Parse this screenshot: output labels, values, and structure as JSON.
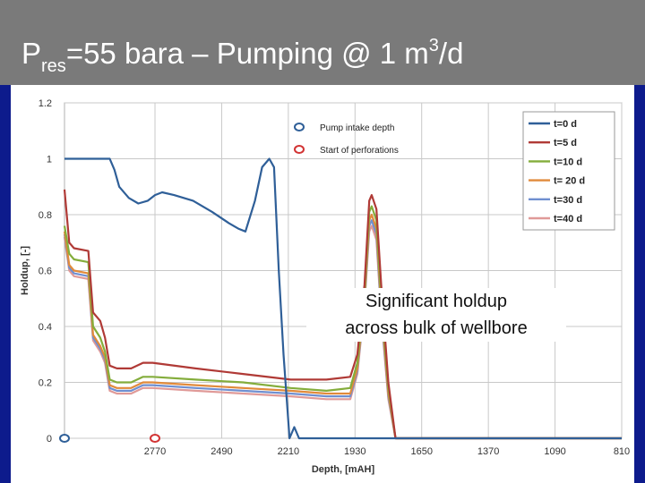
{
  "slide": {
    "title_main": "P",
    "title_sub": "res",
    "title_mid": "=55 bara – Pumping @ 1 m",
    "title_sup": "3",
    "title_end": "/d"
  },
  "annotation": {
    "line1": "Significant holdup",
    "line2": "across bulk of wellbore"
  },
  "colors": {
    "header_bg": "#7a7a7a",
    "side_bars": "#0d1b8c",
    "grid": "#c8c8c8"
  },
  "chart_data": {
    "type": "line",
    "title": "",
    "xlabel": "Depth, [mAH]",
    "ylabel": "Holdup, [-]",
    "x_reversed": true,
    "xlim": [
      3150,
      810
    ],
    "ylim": [
      0,
      1.2
    ],
    "x_ticks": [
      2770,
      2490,
      2210,
      1930,
      1650,
      1370,
      1090,
      810
    ],
    "y_ticks": [
      0,
      0.2,
      0.4,
      0.6,
      0.8,
      1,
      1.2
    ],
    "y_tick_labels": [
      "0",
      "0.2",
      "0.4",
      "0.6",
      "0.8",
      "1",
      "1.2"
    ],
    "grid": true,
    "legend_position": "top-right",
    "series": [
      {
        "name": "t=0 d",
        "color": "#2f5f98",
        "points": [
          [
            3150,
            1.0
          ],
          [
            2960,
            1.0
          ],
          [
            2940,
            0.96
          ],
          [
            2920,
            0.9
          ],
          [
            2880,
            0.86
          ],
          [
            2840,
            0.84
          ],
          [
            2800,
            0.85
          ],
          [
            2770,
            0.87
          ],
          [
            2740,
            0.88
          ],
          [
            2690,
            0.87
          ],
          [
            2610,
            0.85
          ],
          [
            2530,
            0.81
          ],
          [
            2460,
            0.77
          ],
          [
            2420,
            0.75
          ],
          [
            2390,
            0.74
          ],
          [
            2350,
            0.85
          ],
          [
            2320,
            0.97
          ],
          [
            2290,
            1.0
          ],
          [
            2270,
            0.97
          ],
          [
            2250,
            0.6
          ],
          [
            2230,
            0.3
          ],
          [
            2205,
            0.0
          ],
          [
            2185,
            0.04
          ],
          [
            2165,
            0.0
          ],
          [
            810,
            0.0
          ]
        ]
      },
      {
        "name": "t=5 d",
        "color": "#b03a36",
        "points": [
          [
            3150,
            0.89
          ],
          [
            3130,
            0.7
          ],
          [
            3110,
            0.68
          ],
          [
            3050,
            0.67
          ],
          [
            3030,
            0.45
          ],
          [
            3000,
            0.42
          ],
          [
            2980,
            0.36
          ],
          [
            2960,
            0.26
          ],
          [
            2930,
            0.25
          ],
          [
            2870,
            0.25
          ],
          [
            2820,
            0.27
          ],
          [
            2780,
            0.27
          ],
          [
            2600,
            0.25
          ],
          [
            2400,
            0.23
          ],
          [
            2200,
            0.21
          ],
          [
            2050,
            0.21
          ],
          [
            1950,
            0.22
          ],
          [
            1920,
            0.3
          ],
          [
            1890,
            0.55
          ],
          [
            1870,
            0.85
          ],
          [
            1860,
            0.87
          ],
          [
            1840,
            0.82
          ],
          [
            1820,
            0.55
          ],
          [
            1790,
            0.2
          ],
          [
            1760,
            0.0
          ],
          [
            810,
            0.0
          ]
        ]
      },
      {
        "name": "t=10 d",
        "color": "#84ad3c",
        "points": [
          [
            3150,
            0.76
          ],
          [
            3130,
            0.66
          ],
          [
            3110,
            0.64
          ],
          [
            3050,
            0.63
          ],
          [
            3030,
            0.4
          ],
          [
            3000,
            0.36
          ],
          [
            2980,
            0.31
          ],
          [
            2960,
            0.21
          ],
          [
            2930,
            0.2
          ],
          [
            2870,
            0.2
          ],
          [
            2820,
            0.22
          ],
          [
            2780,
            0.22
          ],
          [
            2600,
            0.21
          ],
          [
            2400,
            0.2
          ],
          [
            2200,
            0.18
          ],
          [
            2050,
            0.17
          ],
          [
            1950,
            0.18
          ],
          [
            1920,
            0.27
          ],
          [
            1890,
            0.52
          ],
          [
            1870,
            0.81
          ],
          [
            1860,
            0.83
          ],
          [
            1840,
            0.78
          ],
          [
            1820,
            0.5
          ],
          [
            1790,
            0.18
          ],
          [
            1760,
            0.0
          ],
          [
            810,
            0.0
          ]
        ]
      },
      {
        "name": "t= 20 d",
        "color": "#e18a3b",
        "points": [
          [
            3150,
            0.74
          ],
          [
            3130,
            0.62
          ],
          [
            3110,
            0.6
          ],
          [
            3050,
            0.59
          ],
          [
            3030,
            0.37
          ],
          [
            3000,
            0.33
          ],
          [
            2980,
            0.29
          ],
          [
            2960,
            0.19
          ],
          [
            2930,
            0.18
          ],
          [
            2870,
            0.18
          ],
          [
            2820,
            0.2
          ],
          [
            2780,
            0.2
          ],
          [
            2600,
            0.19
          ],
          [
            2400,
            0.18
          ],
          [
            2200,
            0.17
          ],
          [
            2050,
            0.16
          ],
          [
            1950,
            0.16
          ],
          [
            1920,
            0.25
          ],
          [
            1890,
            0.5
          ],
          [
            1870,
            0.78
          ],
          [
            1860,
            0.8
          ],
          [
            1840,
            0.75
          ],
          [
            1820,
            0.47
          ],
          [
            1790,
            0.16
          ],
          [
            1760,
            0.0
          ],
          [
            810,
            0.0
          ]
        ]
      },
      {
        "name": "t=30 d",
        "color": "#6f8fd0",
        "points": [
          [
            3150,
            0.73
          ],
          [
            3130,
            0.61
          ],
          [
            3110,
            0.59
          ],
          [
            3050,
            0.58
          ],
          [
            3030,
            0.36
          ],
          [
            3000,
            0.32
          ],
          [
            2980,
            0.28
          ],
          [
            2960,
            0.18
          ],
          [
            2930,
            0.17
          ],
          [
            2870,
            0.17
          ],
          [
            2820,
            0.19
          ],
          [
            2780,
            0.19
          ],
          [
            2600,
            0.18
          ],
          [
            2400,
            0.17
          ],
          [
            2200,
            0.16
          ],
          [
            2050,
            0.15
          ],
          [
            1950,
            0.15
          ],
          [
            1920,
            0.24
          ],
          [
            1890,
            0.49
          ],
          [
            1870,
            0.76
          ],
          [
            1860,
            0.78
          ],
          [
            1840,
            0.73
          ],
          [
            1820,
            0.45
          ],
          [
            1790,
            0.15
          ],
          [
            1760,
            0.0
          ],
          [
            810,
            0.0
          ]
        ]
      },
      {
        "name": "t=40 d",
        "color": "#e09a98",
        "points": [
          [
            3150,
            0.72
          ],
          [
            3130,
            0.6
          ],
          [
            3110,
            0.58
          ],
          [
            3050,
            0.57
          ],
          [
            3030,
            0.35
          ],
          [
            3000,
            0.31
          ],
          [
            2980,
            0.27
          ],
          [
            2960,
            0.17
          ],
          [
            2930,
            0.16
          ],
          [
            2870,
            0.16
          ],
          [
            2820,
            0.18
          ],
          [
            2780,
            0.18
          ],
          [
            2600,
            0.17
          ],
          [
            2400,
            0.16
          ],
          [
            2200,
            0.15
          ],
          [
            2050,
            0.14
          ],
          [
            1950,
            0.14
          ],
          [
            1920,
            0.23
          ],
          [
            1890,
            0.48
          ],
          [
            1870,
            0.74
          ],
          [
            1860,
            0.76
          ],
          [
            1840,
            0.71
          ],
          [
            1820,
            0.44
          ],
          [
            1790,
            0.14
          ],
          [
            1760,
            0.0
          ],
          [
            810,
            0.0
          ]
        ]
      }
    ],
    "markers": [
      {
        "name": "Pump intake depth",
        "color": "#2f5f98",
        "x": 3150,
        "y": 0
      },
      {
        "name": "Start of perforations",
        "color": "#d23434",
        "x": 2770,
        "y": 0
      }
    ]
  }
}
